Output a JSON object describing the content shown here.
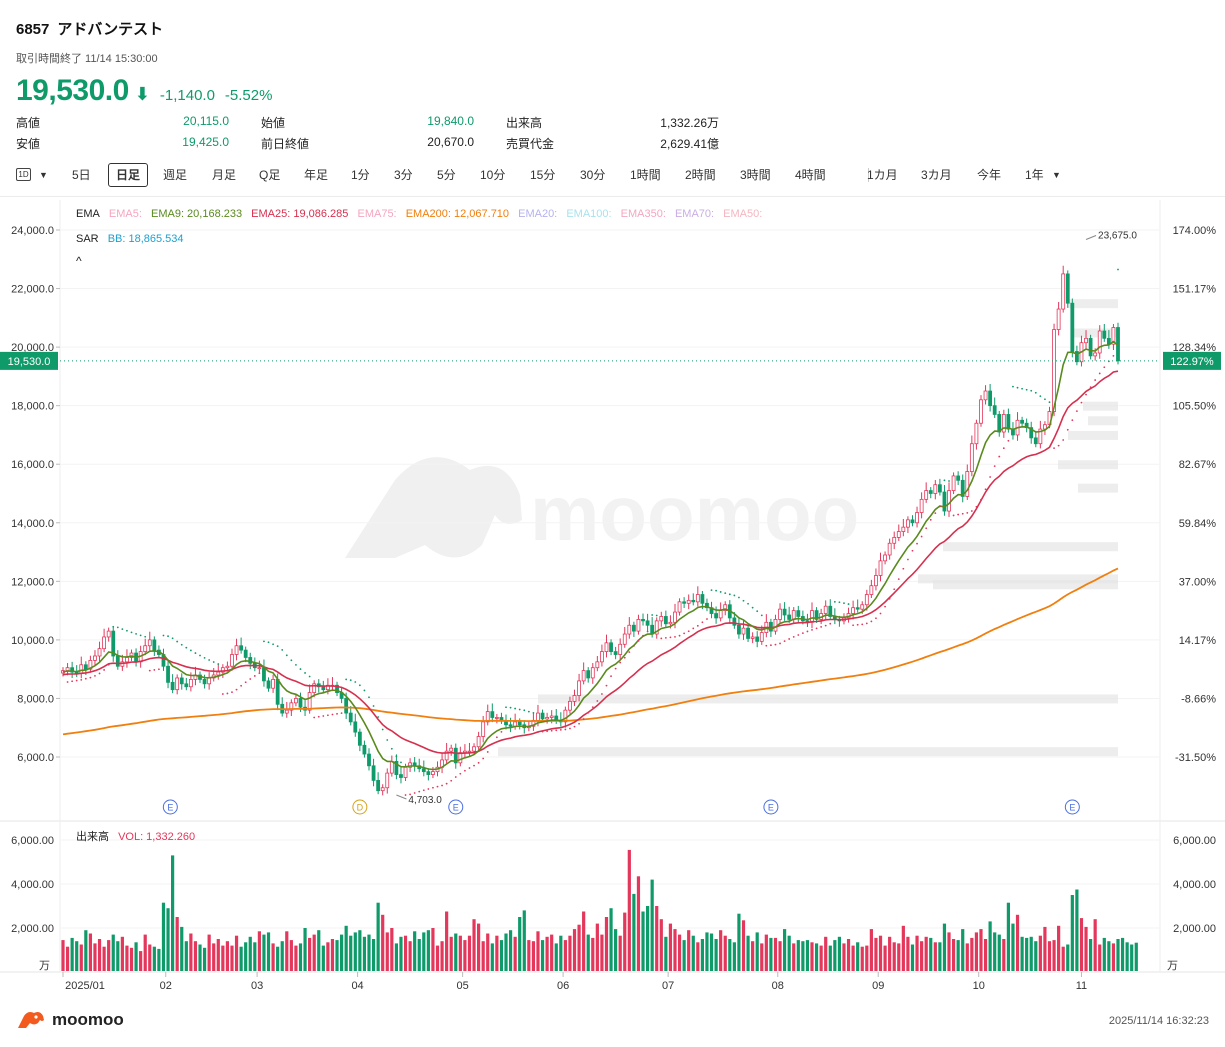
{
  "header": {
    "code": "6857",
    "name": "アドバンテスト",
    "status": "取引時間終了 11/14 15:30:00",
    "price": "19,530.0",
    "change": "-1,140.0",
    "change_pct": "-5.52%",
    "up_color": "#e3375b",
    "down_color": "#0f9a6a"
  },
  "stats": [
    {
      "label": "高値",
      "value": "20,115.0",
      "color": "green"
    },
    {
      "label": "安値",
      "value": "19,425.0",
      "color": "green"
    },
    {
      "label": "始値",
      "value": "19,840.0",
      "color": "green"
    },
    {
      "label": "前日終値",
      "value": "20,670.0",
      "color": "black"
    },
    {
      "label": "出来高",
      "value": "1,332.26万",
      "color": "black"
    },
    {
      "label": "売買代金",
      "value": "2,629.41億",
      "color": "black"
    }
  ],
  "timeframes": {
    "icon_label": "1D",
    "items": [
      "5日",
      "日足",
      "週足",
      "月足",
      "Q足",
      "年足",
      "1分",
      "3分",
      "5分",
      "10分",
      "15分",
      "30分",
      "1時間",
      "2時間",
      "3時間",
      "4時間",
      "1カ月",
      "3カ月",
      "今年",
      "1年"
    ],
    "active": "日足"
  },
  "legend": {
    "ema_title": "EMA",
    "ema_items": [
      {
        "text": "EMA5:",
        "color": "#f4a6c0"
      },
      {
        "text": "EMA9: 20,168.233",
        "color": "#5a8a1e"
      },
      {
        "text": "EMA25: 19,086.285",
        "color": "#d6304f"
      },
      {
        "text": "EMA75:",
        "color": "#f4a6c0"
      },
      {
        "text": "EMA200: 12,067.710",
        "color": "#f07f0e"
      },
      {
        "text": "EMA20:",
        "color": "#b5b2ef"
      },
      {
        "text": "EMA100:",
        "color": "#a8e2ee"
      },
      {
        "text": "EMA350:",
        "color": "#f4a6c0"
      },
      {
        "text": "EMA70:",
        "color": "#c9aee3"
      },
      {
        "text": "EMA50:",
        "color": "#f4b6c0"
      }
    ],
    "sar_title": "SAR",
    "sar_item": {
      "text": "BB: 18,865.534",
      "color": "#1da1d0"
    },
    "collapse": "^",
    "vol_title": "出来高",
    "vol_item": {
      "text": "VOL: 1,332.260",
      "color": "#e3375b"
    }
  },
  "chart_data": {
    "type": "candlestick",
    "title": "",
    "price_axis": {
      "ticks": [
        "24,000.0",
        "22,000.0",
        "20,000.0",
        "18,000.0",
        "16,000.0",
        "14,000.0",
        "12,000.0",
        "10,000.0",
        "8,000.0",
        "6,000.0"
      ],
      "tick_values": [
        24000,
        22000,
        20000,
        18000,
        16000,
        14000,
        12000,
        10000,
        8000,
        6000
      ],
      "ylim": [
        4000,
        24500
      ],
      "current_label": "19,530.0",
      "current_value": 19530
    },
    "pct_axis": {
      "ticks": [
        "174.00%",
        "151.17%",
        "128.34%",
        "105.50%",
        "82.67%",
        "59.84%",
        "37.00%",
        "14.17%",
        "-8.66%",
        "-31.50%"
      ],
      "current_label": "122.97%"
    },
    "x_axis": {
      "labels": [
        "2025/01",
        "02",
        "03",
        "04",
        "05",
        "06",
        "07",
        "08",
        "09",
        "10",
        "11"
      ],
      "label_days": [
        0,
        22.5,
        42.5,
        64.5,
        87.5,
        109.5,
        132.5,
        156.5,
        178.5,
        200.5,
        223
      ]
    },
    "annotations": [
      {
        "text": "23,675.0",
        "day": 224,
        "value": 23675
      },
      {
        "text": "4,703.0",
        "day": 73,
        "value": 4703
      }
    ],
    "event_markers": [
      {
        "letter": "E",
        "day": 23.5
      },
      {
        "letter": "D",
        "day": 65
      },
      {
        "letter": "E",
        "day": 86
      },
      {
        "letter": "E",
        "day": 155
      },
      {
        "letter": "E",
        "day": 221
      }
    ],
    "closes": [
      8950,
      9050,
      8900,
      8850,
      9150,
      9000,
      9300,
      9450,
      9700,
      10100,
      10300,
      9450,
      9100,
      9250,
      9400,
      9550,
      9250,
      9600,
      9800,
      10000,
      9650,
      9500,
      9100,
      8550,
      8300,
      8700,
      8500,
      8400,
      8650,
      8800,
      8650,
      8500,
      8700,
      8800,
      8900,
      9050,
      9100,
      9500,
      9800,
      9650,
      9400,
      9200,
      9050,
      9050,
      8600,
      8350,
      8650,
      7800,
      7500,
      7600,
      7850,
      8000,
      7700,
      7600,
      8200,
      8500,
      8400,
      8300,
      8450,
      8450,
      8200,
      8000,
      7500,
      7200,
      6850,
      6400,
      6100,
      5700,
      5200,
      4850,
      4950,
      5450,
      5850,
      5400,
      5300,
      5650,
      5800,
      5700,
      5600,
      5500,
      5400,
      5500,
      5650,
      5900,
      6200,
      6300,
      5800,
      6150,
      6200,
      6200,
      6350,
      6700,
      7200,
      7550,
      7350,
      7350,
      7250,
      7100,
      7050,
      7200,
      7100,
      7000,
      7050,
      7250,
      7500,
      7300,
      7350,
      7400,
      7250,
      7200,
      7600,
      7900,
      8100,
      8600,
      8950,
      8700,
      9050,
      9250,
      9600,
      9900,
      9600,
      9500,
      9850,
      10200,
      10500,
      10300,
      10700,
      10650,
      10500,
      10200,
      10650,
      10800,
      10550,
      10600,
      10950,
      11300,
      11250,
      11350,
      11300,
      11550,
      11250,
      11100,
      10900,
      10750,
      11000,
      11200,
      10750,
      10500,
      10200,
      10400,
      10050,
      10100,
      9950,
      10250,
      10600,
      10300,
      10700,
      11050,
      10850,
      10700,
      11000,
      10800,
      10650,
      10600,
      11000,
      10700,
      10900,
      11150,
      10800,
      10700,
      10650,
      10750,
      10900,
      11100,
      11050,
      11200,
      11550,
      11850,
      12200,
      12700,
      12900,
      13300,
      13500,
      13700,
      13850,
      14100,
      14000,
      14350,
      14800,
      15100,
      15000,
      15300,
      15050,
      14400,
      15100,
      15600,
      15450,
      14900,
      15750,
      16700,
      17400,
      18200,
      18500,
      18000,
      17700,
      17100,
      17700,
      17200,
      17000,
      17500,
      17400,
      17250,
      16900,
      16700,
      17200,
      17350,
      17800,
      20600,
      21300,
      22500,
      21500,
      19850,
      19500,
      20150,
      20300,
      19700,
      19800,
      20550,
      20300,
      20100,
      20670,
      19530
    ],
    "ema200_series": {
      "name": "EMA200"
    },
    "ema25_series": {
      "name": "EMA25"
    },
    "ema9_series": {
      "name": "EMA9"
    },
    "volume": {
      "axis_ticks": [
        "6,000.00",
        "4,000.00",
        "2,000.00"
      ],
      "tick_values": [
        6000,
        4000,
        2000
      ],
      "unit": "万",
      "ylim": [
        0,
        6800
      ],
      "values": [
        1450,
        1150,
        1550,
        1400,
        1250,
        1900,
        1750,
        1300,
        1500,
        1150,
        1450,
        1700,
        1400,
        1600,
        1200,
        1100,
        1350,
        950,
        1700,
        1250,
        1150,
        1050,
        3150,
        2900,
        5300,
        2500,
        2050,
        1400,
        1750,
        1400,
        1250,
        1100,
        1700,
        1300,
        1500,
        1200,
        1400,
        1200,
        1650,
        1150,
        1350,
        1600,
        1350,
        1850,
        1700,
        1800,
        1300,
        1150,
        1400,
        1850,
        1450,
        1200,
        1300,
        2000,
        1550,
        1700,
        1900,
        1200,
        1350,
        1500,
        1450,
        1700,
        2100,
        1650,
        1800,
        1900,
        1600,
        1700,
        1500,
        3150,
        2600,
        1800,
        2000,
        1300,
        1600,
        1650,
        1400,
        1850,
        1500,
        1800,
        1900,
        2000,
        1200,
        1400,
        2750,
        1600,
        1750,
        1650,
        1450,
        1650,
        2400,
        2200,
        1400,
        1750,
        1300,
        1650,
        1450,
        1750,
        1900,
        1600,
        2500,
        2800,
        1450,
        1400,
        1850,
        1450,
        1600,
        1700,
        1300,
        1650,
        1450,
        1650,
        1950,
        2150,
        2750,
        1700,
        1550,
        2200,
        1700,
        2500,
        2900,
        1950,
        1650,
        2700,
        5550,
        3550,
        4350,
        2750,
        3000,
        4200,
        3000,
        2400,
        1600,
        2200,
        1950,
        1700,
        1450,
        1900,
        1650,
        1350,
        1500,
        1800,
        1750,
        1500,
        1900,
        1650,
        1500,
        1350,
        2650,
        2350,
        1650,
        1400,
        1800,
        1300,
        1700,
        1550,
        1550,
        1400,
        1950,
        1650,
        1300,
        1450,
        1400,
        1450,
        1350,
        1300,
        1200,
        1600,
        1200,
        1450,
        1600,
        1300,
        1500,
        1200,
        1350,
        1150,
        1200,
        1950,
        1550,
        1650,
        1200,
        1600,
        1350,
        1300,
        2100,
        1600,
        1250,
        1650,
        1400,
        1600,
        1550,
        1350,
        1350,
        2200,
        1800,
        1500,
        1450,
        1950,
        1300,
        1550,
        1800,
        1950,
        1500,
        2300,
        1800,
        1700,
        1500,
        3150,
        2200,
        2600,
        1600,
        1550,
        1600,
        1400,
        1650,
        2050,
        1400,
        1450,
        2100,
        1150,
        1250,
        3500,
        3750,
        2450,
        2050,
        1500,
        2400,
        1250,
        1550,
        1400,
        1300,
        1500,
        1550,
        1350,
        1250,
        1332
      ]
    }
  },
  "footer": {
    "logo_text": "moomoo",
    "timestamp": "2025/11/14 16:32:23",
    "watermark": "moomoo"
  }
}
